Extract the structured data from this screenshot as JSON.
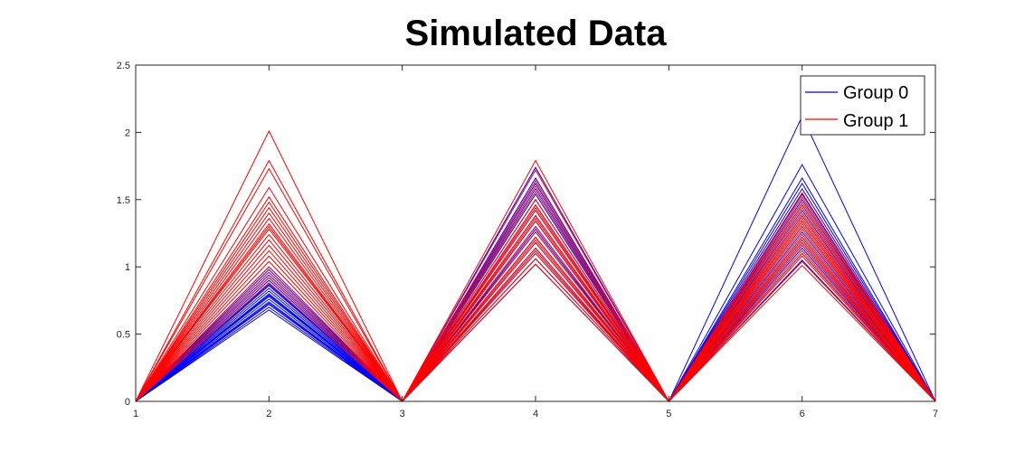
{
  "chart_data": {
    "type": "line",
    "title": "Simulated Data",
    "xlabel": "",
    "ylabel": "",
    "x": [
      1,
      2,
      3,
      4,
      5,
      6,
      7
    ],
    "xlim": [
      1,
      7
    ],
    "ylim": [
      0,
      2.5
    ],
    "xticks": [
      1,
      2,
      3,
      4,
      5,
      6,
      7
    ],
    "yticks": [
      0,
      0.5,
      1,
      1.5,
      2,
      2.5
    ],
    "xtick_labels": [
      "1",
      "2",
      "3",
      "4",
      "5",
      "6",
      "7"
    ],
    "ytick_labels": [
      "0",
      "0.5",
      "1",
      "1.5",
      "2",
      "2.5"
    ],
    "grid": false,
    "legend_position": "top-right",
    "series": [
      {
        "name": "Group 0",
        "color": "#0000ff",
        "lines": [
          [
            0,
            0.68,
            0,
            1.02,
            0,
            2.12,
            0
          ],
          [
            0,
            0.7,
            0,
            1.06,
            0,
            1.76,
            0
          ],
          [
            0,
            0.72,
            0,
            1.1,
            0,
            1.66,
            0
          ],
          [
            0,
            0.74,
            0,
            1.14,
            0,
            1.62,
            0
          ],
          [
            0,
            0.76,
            0,
            1.18,
            0,
            1.58,
            0
          ],
          [
            0,
            0.78,
            0,
            1.22,
            0,
            1.54,
            0
          ],
          [
            0,
            0.8,
            0,
            1.26,
            0,
            1.5,
            0
          ],
          [
            0,
            0.82,
            0,
            1.3,
            0,
            1.46,
            0
          ],
          [
            0,
            0.84,
            0,
            1.34,
            0,
            1.42,
            0
          ],
          [
            0,
            0.86,
            0,
            1.38,
            0,
            1.38,
            0
          ],
          [
            0,
            0.88,
            0,
            1.42,
            0,
            1.34,
            0
          ],
          [
            0,
            0.9,
            0,
            1.46,
            0,
            1.3,
            0
          ],
          [
            0,
            0.92,
            0,
            1.5,
            0,
            1.26,
            0
          ],
          [
            0,
            0.94,
            0,
            1.54,
            0,
            1.22,
            0
          ],
          [
            0,
            0.96,
            0,
            1.58,
            0,
            1.18,
            0
          ],
          [
            0,
            0.98,
            0,
            1.62,
            0,
            1.14,
            0
          ],
          [
            0,
            1.0,
            0,
            1.66,
            0,
            1.1,
            0
          ],
          [
            0,
            0.73,
            0,
            1.12,
            0,
            1.2,
            0
          ],
          [
            0,
            0.79,
            0,
            1.28,
            0,
            1.16,
            0
          ],
          [
            0,
            0.87,
            0,
            1.74,
            0,
            1.05,
            0
          ]
        ]
      },
      {
        "name": "Group 1",
        "color": "#ff0000",
        "lines": [
          [
            0,
            2.01,
            0,
            1.79,
            0,
            1.52,
            0
          ],
          [
            0,
            1.79,
            0,
            1.72,
            0,
            1.48,
            0
          ],
          [
            0,
            1.73,
            0,
            1.64,
            0,
            1.44,
            0
          ],
          [
            0,
            1.59,
            0,
            1.6,
            0,
            1.55,
            0
          ],
          [
            0,
            1.52,
            0,
            1.56,
            0,
            1.4,
            0
          ],
          [
            0,
            1.48,
            0,
            1.5,
            0,
            1.36,
            0
          ],
          [
            0,
            1.44,
            0,
            1.46,
            0,
            1.32,
            0
          ],
          [
            0,
            1.4,
            0,
            1.42,
            0,
            1.28,
            0
          ],
          [
            0,
            1.36,
            0,
            1.38,
            0,
            1.24,
            0
          ],
          [
            0,
            1.32,
            0,
            1.34,
            0,
            1.2,
            0
          ],
          [
            0,
            1.28,
            0,
            1.3,
            0,
            1.16,
            0
          ],
          [
            0,
            1.24,
            0,
            1.26,
            0,
            1.12,
            0
          ],
          [
            0,
            1.2,
            0,
            1.22,
            0,
            1.08,
            0
          ],
          [
            0,
            1.16,
            0,
            1.18,
            0,
            1.04,
            0
          ],
          [
            0,
            1.12,
            0,
            1.14,
            0,
            1.01,
            0
          ],
          [
            0,
            1.08,
            0,
            1.1,
            0,
            1.46,
            0
          ],
          [
            0,
            1.04,
            0,
            1.06,
            0,
            1.34,
            0
          ],
          [
            0,
            1.0,
            0,
            1.02,
            0,
            1.22,
            0
          ],
          [
            0,
            0.96,
            0,
            1.2,
            0,
            1.1,
            0
          ],
          [
            0,
            0.92,
            0,
            1.36,
            0,
            1.3,
            0
          ],
          [
            0,
            0.88,
            0,
            1.44,
            0,
            1.18,
            0
          ],
          [
            0,
            1.3,
            0,
            1.12,
            0,
            1.38,
            0
          ]
        ]
      }
    ]
  }
}
